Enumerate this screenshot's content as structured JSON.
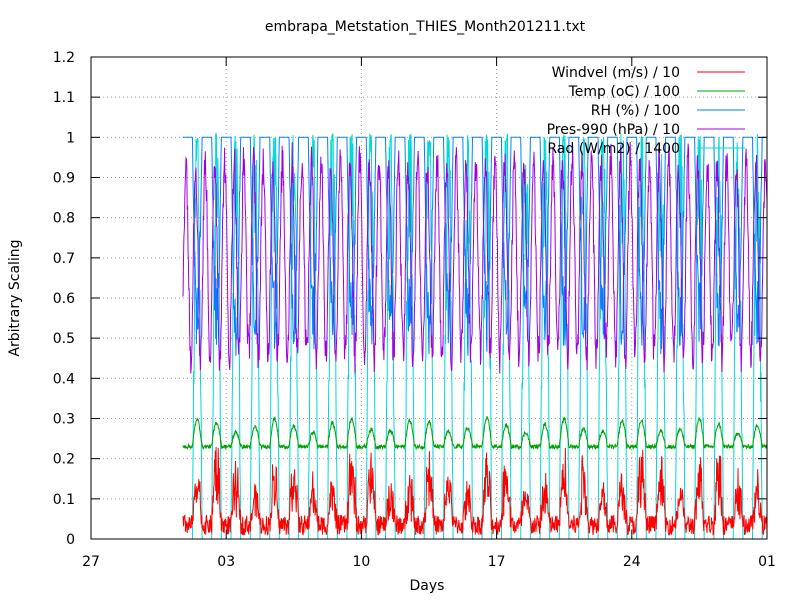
{
  "chart_data": {
    "type": "line",
    "title": "embrapa_Metstation_THIES_Month201211.txt",
    "xlabel": "Days",
    "ylabel": "Arbitrary Scaling",
    "ylim": [
      0,
      1.2
    ],
    "yticks": [
      "0",
      "0.1",
      "0.2",
      "0.3",
      "0.4",
      "0.5",
      "0.6",
      "0.7",
      "0.8",
      "0.9",
      "1",
      "1.1",
      "1.2"
    ],
    "xlim": [
      "2012-10-27",
      "2012-12-01"
    ],
    "xticks": [
      "27",
      "03",
      "10",
      "17",
      "24",
      "01"
    ],
    "grid": true,
    "legend_position": "top-right",
    "data_start": "2012-10-31T18:00",
    "data_end": "2012-12-01T00:00",
    "series": [
      {
        "name": "Windvel (m/s) / 10",
        "color": "#ff0000",
        "night": 0.01,
        "day_peak": 0.17,
        "noise": 0.05
      },
      {
        "name": "Temp (oC) / 100",
        "color": "#00a000",
        "night": 0.23,
        "day_peak": 0.3,
        "noise": 0.01
      },
      {
        "name": "RH (%) / 100",
        "color": "#0080ff",
        "night": 1.0,
        "day_min": 0.55,
        "noise": 0.03
      },
      {
        "name": "Pres-990 (hPa) / 10",
        "color": "#a000e0",
        "min": 0.4,
        "max": 1.0,
        "noise": 0.05
      },
      {
        "name": "Rad (W/m2) / 1400",
        "color": "#00d8d8",
        "night": 0.0,
        "day_peak": 1.0,
        "noise": 0.02
      }
    ]
  }
}
